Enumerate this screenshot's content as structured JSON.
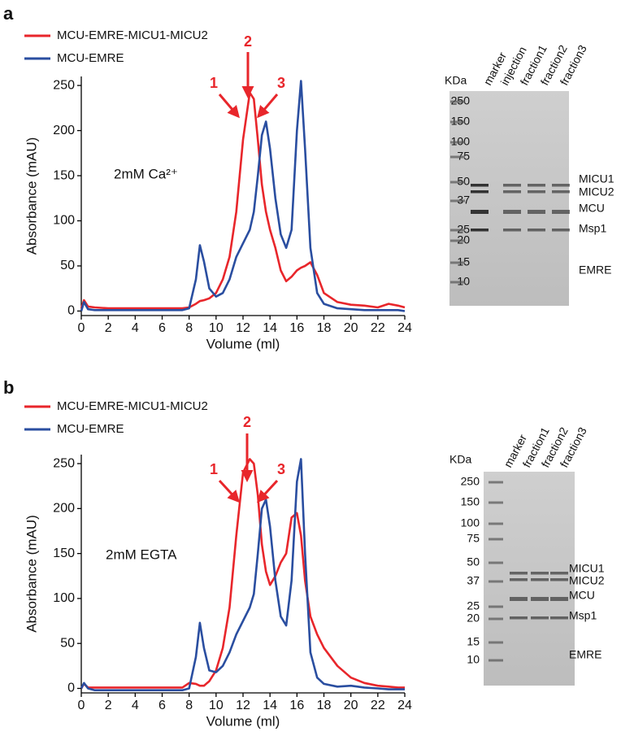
{
  "chart_data": [
    {
      "type": "line",
      "panel_label": "a",
      "annotation": "2mM Ca²⁺",
      "peak_labels": [
        "1",
        "2",
        "3"
      ],
      "x_label": "Volume (ml)",
      "y_label": "Absorbance (mAU)",
      "x": [
        0,
        0.2,
        0.5,
        1,
        2,
        4,
        6,
        7,
        7.5,
        8,
        8.5,
        8.8,
        9.1,
        9.5,
        10,
        10.5,
        11,
        11.5,
        12,
        12.5,
        12.8,
        13.1,
        13.4,
        13.7,
        14,
        14.4,
        14.8,
        15.2,
        15.6,
        16,
        16.3,
        16.6,
        17,
        17.5,
        18,
        19,
        20,
        21,
        22,
        22.8,
        23.5,
        24
      ],
      "series": [
        {
          "name": "MCU-EMRE-MICU1-MICU2",
          "color": "#e8262b",
          "values": [
            3,
            12,
            5,
            4,
            3,
            3,
            3,
            3,
            3,
            4,
            8,
            11,
            12,
            14,
            20,
            35,
            60,
            110,
            190,
            242,
            235,
            190,
            140,
            110,
            90,
            70,
            45,
            33,
            38,
            45,
            48,
            50,
            54,
            40,
            20,
            10,
            7,
            6,
            4,
            8,
            6,
            4
          ]
        },
        {
          "name": "MCU-EMRE",
          "color": "#2a4ea0",
          "values": [
            0,
            10,
            2,
            1,
            1,
            1,
            1,
            1,
            1,
            3,
            35,
            73,
            55,
            25,
            16,
            20,
            35,
            60,
            75,
            90,
            110,
            150,
            195,
            210,
            180,
            125,
            85,
            70,
            90,
            200,
            255,
            180,
            70,
            20,
            8,
            3,
            2,
            1,
            1,
            1,
            1,
            0
          ]
        }
      ],
      "xlim": [
        0,
        24
      ],
      "xticks": [
        0,
        2,
        4,
        6,
        8,
        10,
        12,
        14,
        16,
        18,
        20,
        22,
        24
      ],
      "ylim": [
        -5,
        260
      ],
      "yticks": [
        0,
        50,
        100,
        150,
        200,
        250
      ]
    },
    {
      "type": "line",
      "panel_label": "b",
      "annotation": "2mM EGTA",
      "peak_labels": [
        "1",
        "2",
        "3"
      ],
      "x_label": "Volume (ml)",
      "y_label": "Absorbance (mAU)",
      "x": [
        0,
        0.2,
        0.5,
        1,
        2,
        4,
        6,
        7,
        7.5,
        8,
        8.5,
        8.8,
        9.1,
        9.5,
        10,
        10.5,
        11,
        11.5,
        12,
        12.5,
        12.8,
        13.1,
        13.4,
        13.7,
        14,
        14.4,
        14.8,
        15.2,
        15.6,
        16,
        16.3,
        16.6,
        17,
        17.5,
        18,
        19,
        20,
        21,
        22,
        22.8,
        23.5,
        24
      ],
      "series": [
        {
          "name": "MCU-EMRE-MICU1-MICU2",
          "color": "#e8262b",
          "values": [
            0,
            5,
            1,
            1,
            1,
            1,
            1,
            1,
            1,
            6,
            5,
            3,
            3,
            8,
            20,
            45,
            90,
            170,
            240,
            255,
            250,
            215,
            160,
            130,
            115,
            125,
            140,
            150,
            190,
            195,
            170,
            120,
            80,
            60,
            45,
            25,
            12,
            6,
            3,
            2,
            1,
            1
          ]
        },
        {
          "name": "MCU-EMRE",
          "color": "#2a4ea0",
          "values": [
            0,
            6,
            0,
            -2,
            -2,
            -2,
            -2,
            -2,
            -2,
            0,
            35,
            73,
            45,
            20,
            18,
            25,
            40,
            60,
            75,
            90,
            105,
            150,
            200,
            210,
            180,
            120,
            80,
            70,
            120,
            230,
            255,
            150,
            40,
            12,
            5,
            2,
            3,
            1,
            0,
            -1,
            -1,
            -1
          ]
        }
      ],
      "xlim": [
        0,
        24
      ],
      "xticks": [
        0,
        2,
        4,
        6,
        8,
        10,
        12,
        14,
        16,
        18,
        20,
        22,
        24
      ],
      "ylim": [
        -5,
        260
      ],
      "yticks": [
        0,
        50,
        100,
        150,
        200,
        250
      ]
    }
  ],
  "gels": [
    {
      "unit_label": "KDa",
      "lanes": [
        {
          "label": "marker",
          "color": "#000000"
        },
        {
          "label": "injection",
          "color": "#000000"
        },
        {
          "label": "fraction1",
          "color": "#e8262b"
        },
        {
          "label": "fraction2",
          "color": "#e8262b"
        },
        {
          "label": "fraction3",
          "color": "#e8262b"
        }
      ],
      "mw_markers": [
        "250",
        "150",
        "100",
        "75",
        "50",
        "37",
        "25",
        "20",
        "15",
        "10"
      ],
      "bands": [
        "MICU1",
        "MICU2",
        "MCU",
        "Msp1",
        "EMRE"
      ]
    },
    {
      "unit_label": "KDa",
      "lanes": [
        {
          "label": "marker",
          "color": "#000000"
        },
        {
          "label": "fraction1",
          "color": "#e8262b"
        },
        {
          "label": "fraction2",
          "color": "#e8262b"
        },
        {
          "label": "fraction3",
          "color": "#e8262b"
        }
      ],
      "mw_markers": [
        "250",
        "150",
        "100",
        "75",
        "50",
        "37",
        "25",
        "20",
        "15",
        "10"
      ],
      "bands": [
        "MICU1",
        "MICU2",
        "MCU",
        "Msp1",
        "EMRE"
      ]
    }
  ]
}
